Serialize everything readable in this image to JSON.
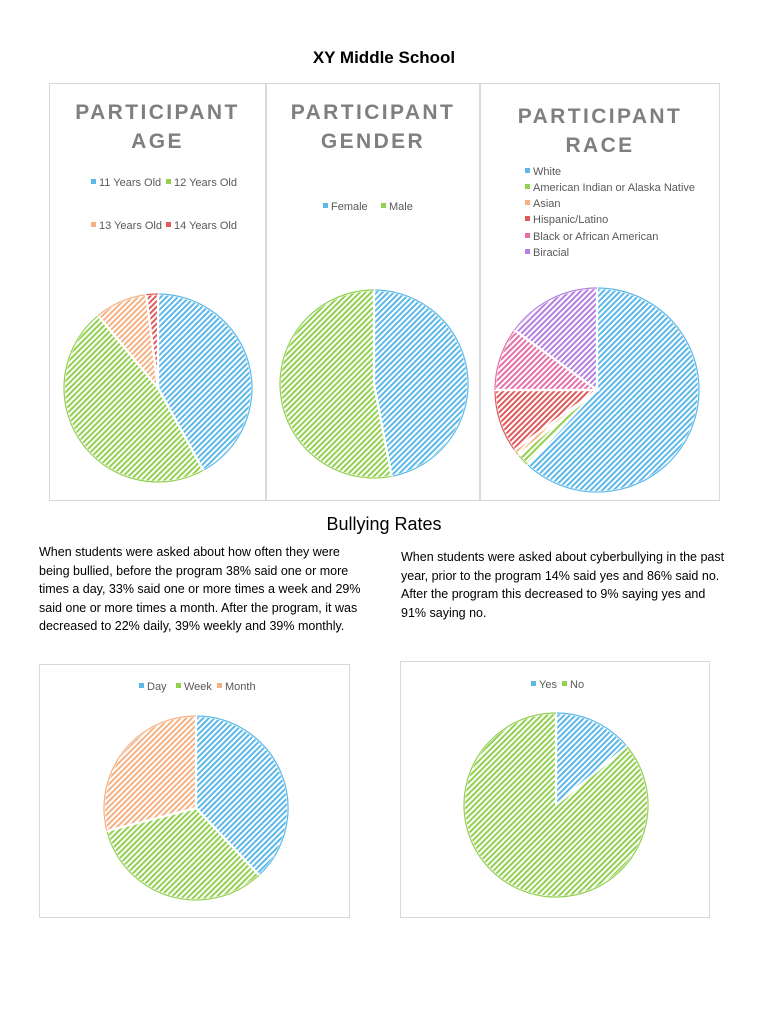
{
  "page": {
    "title": "XY Middle School",
    "section_title": "Bullying Rates",
    "paragraph_bullying": "When students were asked about how often they were being bullied, before the program 38% said one or more times a day, 33% said one or more times a week and 29% said one or more times a month. After the program, it was decreased to 22% daily, 39% weekly and 39% monthly.",
    "paragraph_cyber": "When students were asked about cyberbullying in the past year, prior to the program 14% said yes and 86% said no. After the program this decreased to 9% saying yes and 91% saying no."
  },
  "chart_data": [
    {
      "id": "age",
      "type": "pie",
      "title_lines": [
        "PARTICIPANT",
        "AGE"
      ],
      "labels": [
        "11 Years Old",
        "12 Years Old",
        "13 Years Old",
        "14 Years Old"
      ],
      "values": [
        42,
        47,
        9,
        2
      ],
      "colors": [
        "#5bb8e8",
        "#92d050",
        "#f4b183",
        "#e05a5a"
      ]
    },
    {
      "id": "gender",
      "type": "pie",
      "title_lines": [
        "PARTICIPANT",
        "GENDER"
      ],
      "labels": [
        "Female",
        "Male"
      ],
      "values": [
        47,
        53
      ],
      "colors": [
        "#5bb8e8",
        "#92d050"
      ]
    },
    {
      "id": "race",
      "type": "pie",
      "title_lines": [
        "PARTICIPANT",
        "RACE"
      ],
      "labels": [
        "White",
        "American Indian or Alaska Native",
        "Asian",
        "Hispanic/Latino",
        "Black or African American",
        "Biracial"
      ],
      "values": [
        62,
        2,
        1,
        10,
        10,
        15
      ],
      "colors": [
        "#5bb8e8",
        "#92d050",
        "#f4b183",
        "#e05a5a",
        "#e56fa6",
        "#b57fe0"
      ]
    },
    {
      "id": "bullying",
      "type": "pie",
      "title_lines": [],
      "labels": [
        "Day",
        "Week",
        "Month"
      ],
      "values": [
        38,
        33,
        29
      ],
      "colors": [
        "#5bb8e8",
        "#92d050",
        "#f4b183"
      ]
    },
    {
      "id": "cyber",
      "type": "pie",
      "title_lines": [],
      "labels": [
        "Yes",
        "No"
      ],
      "values": [
        14,
        86
      ],
      "colors": [
        "#5bb8e8",
        "#92d050"
      ]
    }
  ]
}
